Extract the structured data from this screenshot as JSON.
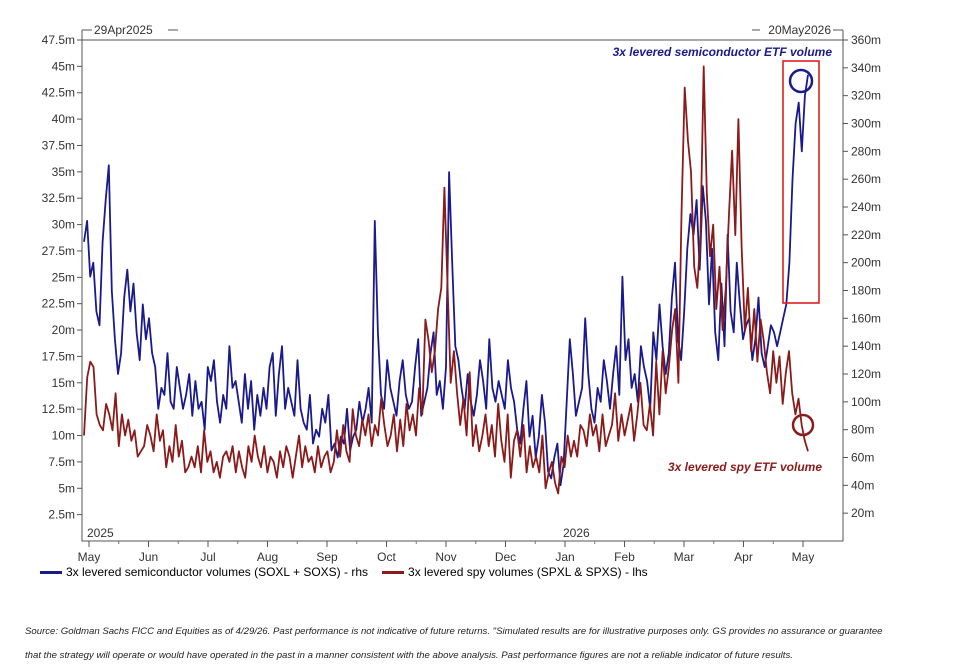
{
  "chart_data": {
    "type": "line",
    "start_date_label": "29Apr2025",
    "end_date_label": "20May2026",
    "x_tick_labels": [
      "May",
      "Jun",
      "Jul",
      "Aug",
      "Sep",
      "Oct",
      "Nov",
      "Dec",
      "Jan",
      "Feb",
      "Mar",
      "Apr",
      "May"
    ],
    "year_labels": [
      {
        "label": "2025",
        "after_tick": 0
      },
      {
        "label": "2026",
        "after_tick": 8
      }
    ],
    "left_axis": {
      "min": 0,
      "max": 47.5,
      "ticks": [
        "2.5m",
        "5m",
        "7.5m",
        "10m",
        "12.5m",
        "15m",
        "17.5m",
        "20m",
        "22.5m",
        "25m",
        "27.5m",
        "30m",
        "32.5m",
        "35m",
        "37.5m",
        "40m",
        "42.5m",
        "45m",
        "47.5m"
      ]
    },
    "right_axis": {
      "min": 0,
      "max": 360,
      "ticks": [
        "20m",
        "40m",
        "60m",
        "80m",
        "100m",
        "120m",
        "140m",
        "160m",
        "180m",
        "200m",
        "220m",
        "240m",
        "260m",
        "280m",
        "300m",
        "320m",
        "340m",
        "360m"
      ]
    },
    "series": [
      {
        "name": "3x levered semiconductor volumes (SOXL + SOXS) - rhs",
        "axis": "right",
        "color": "#1a1a8c",
        "values": [
          215,
          230,
          190,
          200,
          165,
          155,
          215,
          245,
          270,
          180,
          145,
          120,
          135,
          175,
          195,
          165,
          185,
          150,
          130,
          170,
          145,
          160,
          135,
          125,
          95,
          110,
          105,
          135,
          100,
          95,
          125,
          110,
          95,
          105,
          120,
          90,
          115,
          95,
          100,
          80,
          125,
          115,
          130,
          100,
          85,
          105,
          95,
          140,
          110,
          115,
          100,
          85,
          120,
          95,
          115,
          80,
          105,
          90,
          110,
          95,
          125,
          135,
          90,
          120,
          140,
          95,
          110,
          100,
          90,
          130,
          95,
          85,
          80,
          105,
          70,
          80,
          75,
          95,
          85,
          105,
          65,
          70,
          60,
          75,
          70,
          95,
          65,
          75,
          80,
          100,
          85,
          95,
          110,
          85,
          230,
          150,
          105,
          95,
          130,
          110,
          100,
          90,
          115,
          130,
          105,
          95,
          100,
          125,
          145,
          90,
          100,
          110,
          135,
          150,
          105,
          115,
          95,
          125,
          265,
          200,
          140,
          130,
          110,
          95,
          120,
          100,
          90,
          105,
          130,
          115,
          95,
          145,
          110,
          100,
          115,
          105,
          95,
          130,
          110,
          100,
          80,
          70,
          95,
          115,
          75,
          90,
          60,
          75,
          105,
          85,
          50,
          45,
          60,
          70,
          40,
          55,
          100,
          145,
          120,
          90,
          100,
          110,
          160,
          120,
          95,
          85,
          110,
          100,
          130,
          115,
          95,
          120,
          140,
          105,
          190,
          130,
          145,
          110,
          120,
          100,
          140,
          125,
          115,
          95,
          150,
          130,
          170,
          140,
          120,
          135,
          175,
          200,
          145,
          130,
          165,
          210,
          235,
          220,
          245,
          195,
          255,
          230,
          170,
          210,
          150,
          130,
          185,
          140,
          220,
          165,
          150,
          200,
          170,
          145,
          155,
          160,
          130,
          145,
          175,
          135,
          125,
          140,
          155,
          150,
          140,
          150,
          160,
          170,
          200,
          260,
          300,
          315,
          280,
          320,
          335
        ],
        "annotation": "3x levered semiconductor ETF volume"
      },
      {
        "name": "3x levered spy volumes (SPXL & SPXS) - lhs",
        "axis": "left",
        "color": "#8b1a1a",
        "values": [
          10,
          15.5,
          17,
          16.5,
          12,
          11,
          10.5,
          13,
          12,
          10.5,
          14,
          9,
          12,
          10,
          11.5,
          9.5,
          10.5,
          8,
          8.5,
          9,
          11,
          10,
          8.5,
          12,
          9.5,
          10.5,
          7,
          9,
          7.5,
          11,
          8,
          9.5,
          6.5,
          7,
          8,
          7,
          9,
          6.5,
          10.5,
          7.5,
          8.5,
          6.5,
          7.5,
          6,
          8,
          8.5,
          7.5,
          9,
          6.5,
          8.5,
          7,
          6,
          9,
          7.5,
          10,
          8,
          7,
          9,
          6.5,
          8,
          7.5,
          6,
          8.5,
          7,
          9,
          8,
          6,
          8,
          10,
          7,
          9,
          7.5,
          8,
          6.5,
          9,
          7,
          8,
          8.5,
          6.5,
          7.5,
          10.5,
          8,
          11,
          8.5,
          7.5,
          12.5,
          10,
          9,
          11.5,
          10,
          12,
          9,
          11,
          10,
          13.5,
          11,
          9,
          10,
          12,
          8.5,
          11.5,
          9,
          13,
          10.5,
          12,
          10,
          14.5,
          12,
          21,
          19,
          16,
          18,
          22,
          24,
          33.5,
          24,
          15,
          18,
          14,
          11,
          13.5,
          10,
          16,
          9,
          11,
          8.5,
          10,
          12,
          9,
          11,
          8,
          13,
          9.5,
          7.5,
          12,
          6,
          9.5,
          10.5,
          8,
          11,
          6.5,
          9,
          7,
          8,
          6.5,
          10,
          5,
          6.5,
          7.5,
          5.5,
          4.5,
          8,
          7,
          10,
          8,
          9.5,
          8,
          11,
          10.5,
          9,
          12,
          10,
          11,
          8.5,
          12,
          9,
          10,
          11,
          14,
          9.5,
          12,
          10,
          11.5,
          13,
          9.5,
          12,
          15,
          11,
          10.5,
          13,
          10,
          17,
          12,
          18,
          14,
          16.5,
          20,
          22,
          15,
          31,
          43,
          38,
          35,
          26,
          24,
          29,
          45,
          33,
          27,
          30,
          22,
          26,
          20,
          24,
          31,
          37,
          29,
          40,
          28,
          20,
          24,
          18,
          22,
          17,
          21,
          19,
          16,
          14,
          18,
          15,
          17.5,
          13,
          16,
          18,
          14,
          12,
          13.5,
          11,
          9.5,
          8.5
        ],
        "annotation": "3x levered spy ETF volume"
      }
    ],
    "legend": [
      "3x levered semiconductor volumes (SOXL + SOXS) - rhs",
      "3x levered spy volumes (SPXL & SPXS) - lhs"
    ]
  },
  "footer": {
    "line1": "Source: Goldman Sachs FICC and Equities as of 4/29/26. Past performance is not indicative of future returns. \"Simulated results are for illustrative purposes only. GS provides no assurance or guarantee",
    "line2": "that the strategy will operate or would have operated in the past in a manner consistent with the above analysis. Past performance figures are not a reliable indicator of future results."
  },
  "colors": {
    "semi": "#1a1a8c",
    "spy": "#8b1a1a",
    "highlight": "#e02020"
  }
}
